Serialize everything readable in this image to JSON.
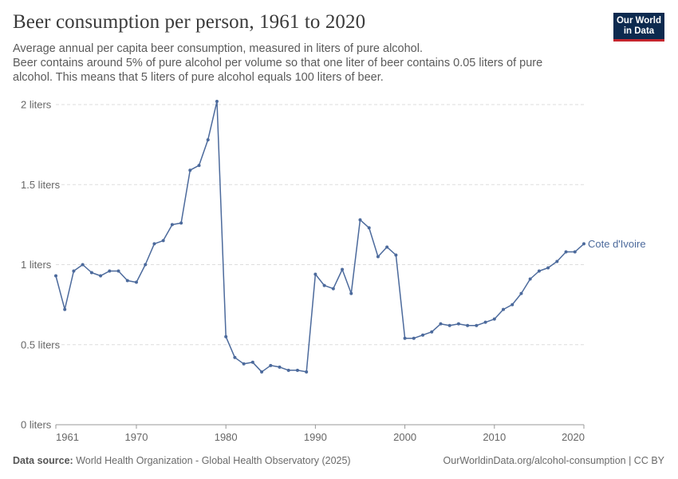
{
  "header": {
    "title": "Beer consumption per person, 1961 to 2020",
    "subtitle_lines": [
      "Average annual per capita beer consumption, measured in liters of pure alcohol.",
      "Beer contains around 5% of pure alcohol per volume so that one liter of beer contains 0.05 liters of pure",
      "alcohol. This means that 5 liters of pure alcohol equals 100 liters of beer."
    ]
  },
  "logo": {
    "line1": "Our World",
    "line2": "in Data"
  },
  "footer": {
    "source_label": "Data source:",
    "source_text": "World Health Organization - Global Health Observatory (2025)",
    "right_text": "OurWorldinData.org/alcohol-consumption | CC BY"
  },
  "colors": {
    "series": "#4c6a9c",
    "grid": "#dddddd",
    "text": "#666666"
  },
  "chart_data": {
    "type": "line",
    "title": "Beer consumption per person, 1961 to 2020",
    "xlabel": "",
    "ylabel": "",
    "xlim": [
      1961,
      2020
    ],
    "ylim": [
      0,
      2
    ],
    "grid": true,
    "x_ticks": [
      "1961",
      "1970",
      "1980",
      "1990",
      "2000",
      "2010",
      "2020"
    ],
    "y_ticks": [
      "0 liters",
      "0.5 liters",
      "1 liters",
      "1.5 liters",
      "2 liters"
    ],
    "x": [
      1961,
      1962,
      1963,
      1964,
      1965,
      1966,
      1967,
      1968,
      1969,
      1970,
      1971,
      1972,
      1973,
      1974,
      1975,
      1976,
      1977,
      1978,
      1979,
      1980,
      1981,
      1982,
      1983,
      1984,
      1985,
      1986,
      1987,
      1988,
      1989,
      1990,
      1991,
      1992,
      1993,
      1994,
      1995,
      1996,
      1997,
      1998,
      1999,
      2000,
      2001,
      2002,
      2003,
      2004,
      2005,
      2006,
      2007,
      2008,
      2009,
      2010,
      2011,
      2012,
      2013,
      2014,
      2015,
      2016,
      2017,
      2018,
      2019,
      2020
    ],
    "series": [
      {
        "name": "Cote d'Ivoire",
        "values": [
          0.93,
          0.72,
          0.96,
          1.0,
          0.95,
          0.93,
          0.96,
          0.96,
          0.9,
          0.89,
          1.0,
          1.13,
          1.15,
          1.25,
          1.26,
          1.59,
          1.62,
          1.78,
          2.02,
          0.55,
          0.42,
          0.38,
          0.39,
          0.33,
          0.37,
          0.36,
          0.34,
          0.34,
          0.33,
          0.94,
          0.87,
          0.85,
          0.97,
          0.82,
          1.28,
          1.23,
          1.05,
          1.11,
          1.06,
          0.54,
          0.54,
          0.56,
          0.58,
          0.63,
          0.62,
          0.63,
          0.62,
          0.62,
          0.64,
          0.66,
          0.72,
          0.75,
          0.82,
          0.91,
          0.96,
          0.98,
          1.02,
          1.08,
          1.08,
          1.13
        ]
      }
    ]
  }
}
